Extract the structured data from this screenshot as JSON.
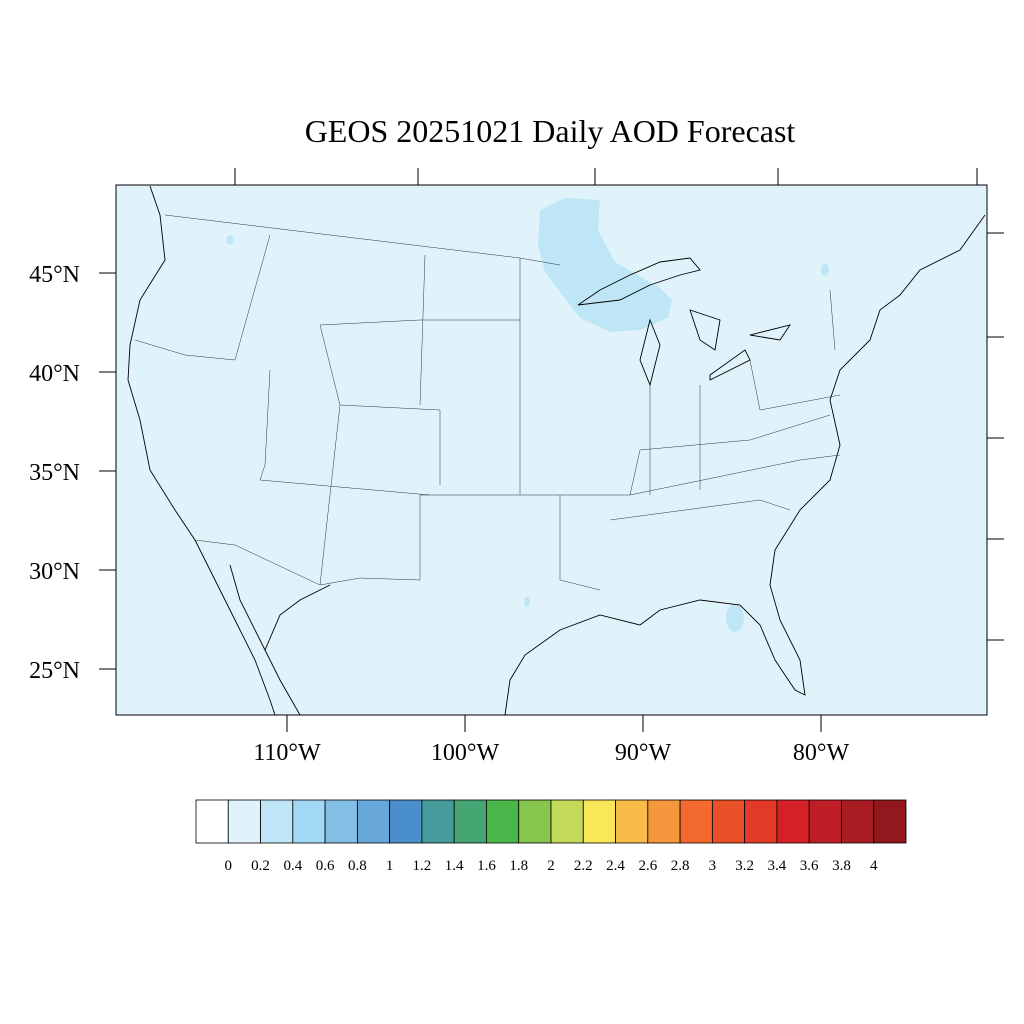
{
  "title": "GEOS 20251021 Daily AOD Forecast",
  "lat_labels": [
    "45°N",
    "40°N",
    "35°N",
    "30°N",
    "25°N"
  ],
  "lon_labels": [
    "110°W",
    "100°W",
    "90°W",
    "80°W"
  ],
  "colorbar": {
    "colors": [
      "#ffffff",
      "#e0f3fb",
      "#bfe6f7",
      "#a1d8f3",
      "#84bfe5",
      "#67a7da",
      "#4a8fcb",
      "#469c9a",
      "#45a674",
      "#4ab64a",
      "#86c54e",
      "#c2d95a",
      "#f9e75a",
      "#f7bd48",
      "#f5973d",
      "#f26a2e",
      "#ea5028",
      "#e23a27",
      "#d42127",
      "#be1e26",
      "#a81c23",
      "#92181d"
    ],
    "labels": [
      "0",
      "0.2",
      "0.4",
      "0.6",
      "0.8",
      "1",
      "1.2",
      "1.4",
      "1.6",
      "1.8",
      "2",
      "2.2",
      "2.4",
      "2.6",
      "2.8",
      "3",
      "3.2",
      "3.4",
      "3.6",
      "3.8",
      "4"
    ]
  }
}
